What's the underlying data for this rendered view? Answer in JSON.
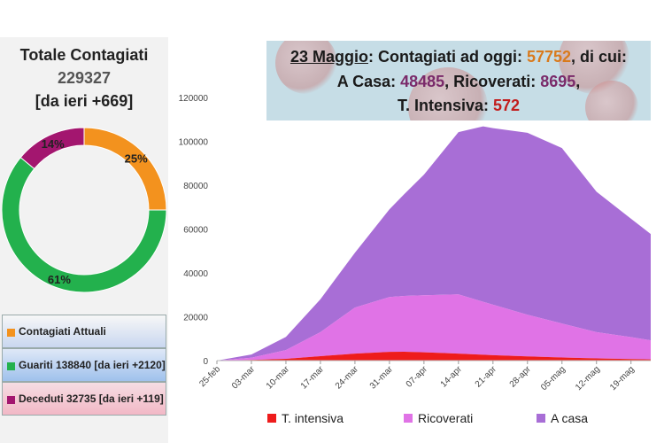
{
  "summary": {
    "title": "Totale Contagiati",
    "total": "229327",
    "delta": "[da ieri +669]"
  },
  "donut": {
    "slices": [
      {
        "label": "25%",
        "value": 25,
        "color": "#f3921e"
      },
      {
        "label": "61%",
        "value": 61,
        "color": "#23b14d"
      },
      {
        "label": "14%",
        "value": 14,
        "color": "#a3166f"
      }
    ]
  },
  "legend": [
    {
      "text": "Contagiati Attuali",
      "color": "#f3921e"
    },
    {
      "text": "Guariti 138840 [da ieri +2120]",
      "color": "#23b14d"
    },
    {
      "text": "Deceduti 32735 [da ieri +119]",
      "color": "#a3166f"
    }
  ],
  "banner": {
    "date": "23 Maggio",
    "t1": ": Contagiati ad oggi: ",
    "v1": "57752",
    "t2": ", di cui:",
    "t3": "A Casa: ",
    "v3": "48485",
    "t4": ", Ricoverati: ",
    "v4": "8695",
    "t5": ",",
    "t6": "T. Intensiva: ",
    "v6": "572"
  },
  "chart_data": {
    "type": "area",
    "stacked": true,
    "ylim": [
      0,
      120000
    ],
    "yticks": [
      0,
      20000,
      40000,
      60000,
      80000,
      100000,
      120000
    ],
    "xlabels": [
      "25-feb",
      "03-mar",
      "10-mar",
      "17-mar",
      "24-mar",
      "31-mar",
      "07-apr",
      "14-apr",
      "21-apr",
      "28-apr",
      "05-mag",
      "12-mag",
      "19-mag"
    ],
    "x_start": "25-feb",
    "x_end": "23-mag",
    "legend_position": "bottom",
    "series": [
      {
        "name": "T. intensiva",
        "color": "#ee1c1c",
        "points": [
          [
            "25-feb",
            0
          ],
          [
            "03-mar",
            300
          ],
          [
            "10-mar",
            800
          ],
          [
            "17-mar",
            2000
          ],
          [
            "24-mar",
            3200
          ],
          [
            "31-mar",
            4000
          ],
          [
            "03-apr",
            4050
          ],
          [
            "07-apr",
            3800
          ],
          [
            "14-apr",
            3200
          ],
          [
            "21-apr",
            2500
          ],
          [
            "28-apr",
            1900
          ],
          [
            "05-mag",
            1400
          ],
          [
            "12-mag",
            1000
          ],
          [
            "19-mag",
            700
          ],
          [
            "23-mag",
            572
          ]
        ]
      },
      {
        "name": "Ricoverati",
        "color": "#e073e6",
        "points": [
          [
            "25-feb",
            0
          ],
          [
            "03-mar",
            1000
          ],
          [
            "10-mar",
            4000
          ],
          [
            "17-mar",
            11000
          ],
          [
            "24-mar",
            21000
          ],
          [
            "31-mar",
            25000
          ],
          [
            "07-apr",
            26000
          ],
          [
            "14-apr",
            27000
          ],
          [
            "21-apr",
            23000
          ],
          [
            "28-apr",
            19000
          ],
          [
            "05-mag",
            15500
          ],
          [
            "12-mag",
            12000
          ],
          [
            "19-mag",
            10000
          ],
          [
            "23-mag",
            8695
          ]
        ]
      },
      {
        "name": "A casa",
        "color": "#a86ed6",
        "points": [
          [
            "25-feb",
            0
          ],
          [
            "03-mar",
            1500
          ],
          [
            "10-mar",
            6000
          ],
          [
            "17-mar",
            15000
          ],
          [
            "24-mar",
            25000
          ],
          [
            "31-mar",
            40000
          ],
          [
            "07-apr",
            55000
          ],
          [
            "14-apr",
            74000
          ],
          [
            "19-apr",
            80000
          ],
          [
            "21-apr",
            80500
          ],
          [
            "28-apr",
            83000
          ],
          [
            "05-mag",
            80000
          ],
          [
            "12-mag",
            64000
          ],
          [
            "19-mag",
            54000
          ],
          [
            "23-mag",
            48485
          ]
        ]
      }
    ]
  }
}
